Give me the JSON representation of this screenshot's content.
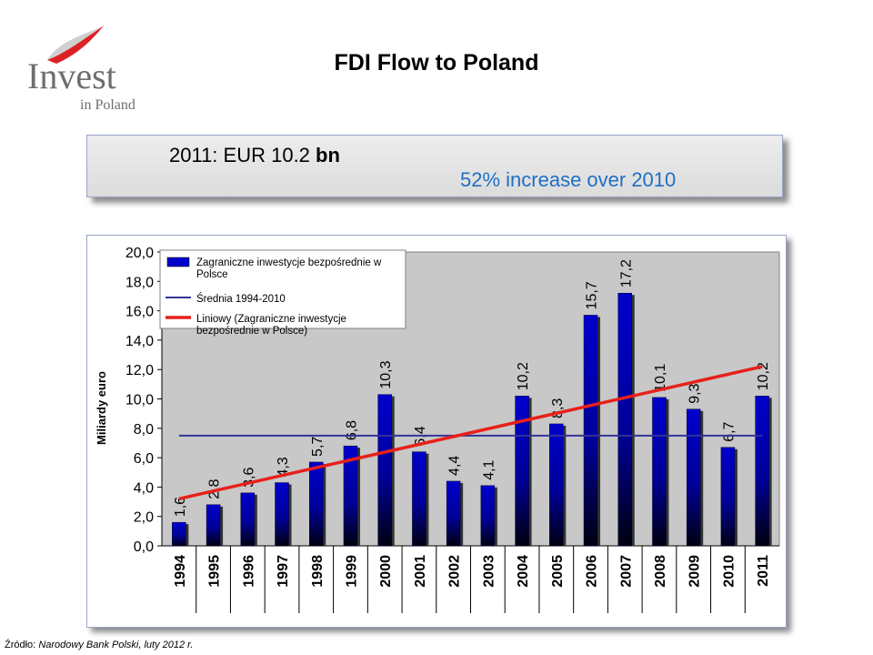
{
  "logo": {
    "text_main": "Invest",
    "text_sub": "in Poland"
  },
  "title": "FDI Flow to Poland",
  "callout": {
    "year_value": "2011: EUR 10.2",
    "unit": "bn",
    "increase": "52% increase over 2010"
  },
  "source": {
    "prefix": "Źródło:",
    "text": "Narodowy Bank Polski, luty 2012 r."
  },
  "colors": {
    "bar": "#0000cc",
    "average_line": "#333399",
    "trend_line": "#e8201a",
    "plot_bg": "#c8c8c8",
    "callout_blue": "#1f6fc5"
  },
  "chart_data": {
    "type": "bar",
    "title": "",
    "xlabel": "",
    "ylabel": "Miliardy euro",
    "ylim": [
      0,
      20
    ],
    "yticks": [
      "0,0",
      "2,0",
      "4,0",
      "6,0",
      "8,0",
      "10,0",
      "12,0",
      "14,0",
      "16,0",
      "18,0",
      "20,0"
    ],
    "categories": [
      "1994",
      "1995",
      "1996",
      "1997",
      "1998",
      "1999",
      "2000",
      "2001",
      "2002",
      "2003",
      "2004",
      "2005",
      "2006",
      "2007",
      "2008",
      "2009",
      "2010",
      "2011"
    ],
    "series": [
      {
        "name": "Zagraniczne inwestycje bezpośrednie w Polsce",
        "kind": "bar",
        "values": [
          1.6,
          2.8,
          3.6,
          4.3,
          5.7,
          6.8,
          10.3,
          6.4,
          4.4,
          4.1,
          10.2,
          8.3,
          15.7,
          17.2,
          10.1,
          9.3,
          6.7,
          10.2
        ],
        "labels": [
          "1,6",
          "2,8",
          "3,6",
          "4,3",
          "5,7",
          "6,8",
          "10,3",
          "6,4",
          "4,4",
          "4,1",
          "10,2",
          "8,3",
          "15,7",
          "17,2",
          "10,1",
          "9,3",
          "6,7",
          "10,2"
        ]
      },
      {
        "name": "Średnia 1994-2010",
        "kind": "line",
        "value": 7.5
      },
      {
        "name": "Liniowy (Zagraniczne inwestycje bezpośrednie w Polsce)",
        "kind": "trend",
        "start": 3.2,
        "end": 12.2
      }
    ],
    "legend_position": "top-left",
    "grid": false
  }
}
